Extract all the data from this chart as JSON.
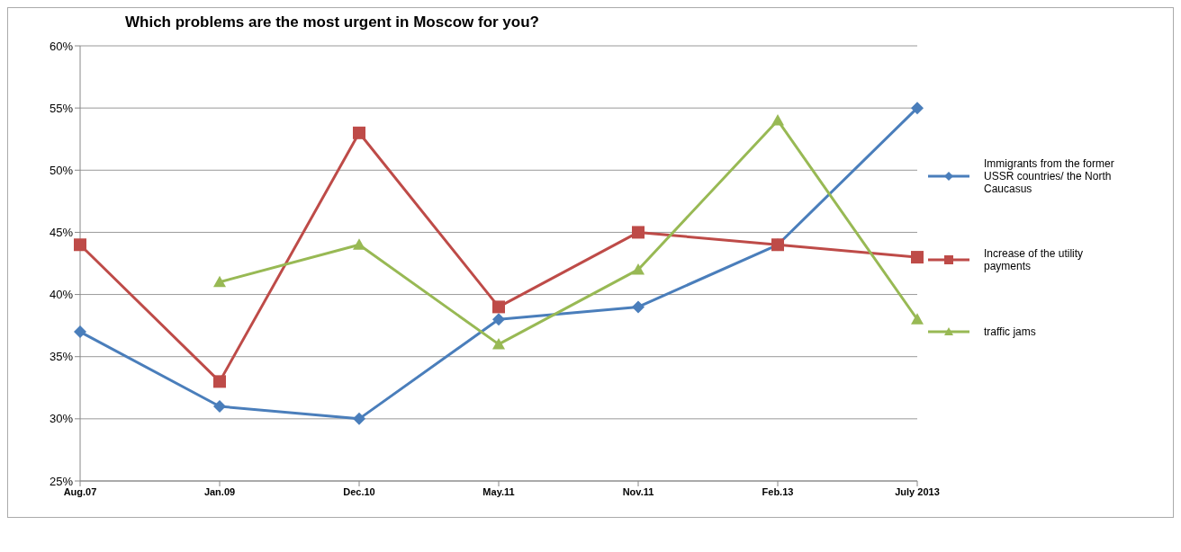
{
  "chart_data": {
    "type": "line",
    "title": "Which problems are the most urgent in Moscow for you?",
    "categories": [
      "Aug.07",
      "Jan.09",
      "Dec.10",
      "May.11",
      "Nov.11",
      "Feb.13",
      "July 2013"
    ],
    "series": [
      {
        "name": "Immigrants from the former USSR countries/ the North Caucasus",
        "color": "#4a7ebb",
        "marker": "diamond",
        "values": [
          37,
          31,
          30,
          38,
          39,
          44,
          55
        ]
      },
      {
        "name": "Increase of the utility payments",
        "color": "#be4b48",
        "marker": "square",
        "values": [
          44,
          33,
          53,
          39,
          45,
          44,
          43
        ]
      },
      {
        "name": "traffic jams",
        "color": "#98b954",
        "marker": "triangle",
        "values": [
          null,
          41,
          44,
          36,
          42,
          54,
          38
        ]
      }
    ],
    "ylim": [
      25,
      60
    ],
    "yticks": [
      {
        "value": 25,
        "label": "25%"
      },
      {
        "value": 30,
        "label": "30%"
      },
      {
        "value": 35,
        "label": "35%"
      },
      {
        "value": 40,
        "label": "40%"
      },
      {
        "value": 45,
        "label": "45%"
      },
      {
        "value": 50,
        "label": "50%"
      },
      {
        "value": 55,
        "label": "55%"
      },
      {
        "value": 60,
        "label": "60%"
      }
    ],
    "grid": "y",
    "legend": "right",
    "line_style": "solid"
  }
}
